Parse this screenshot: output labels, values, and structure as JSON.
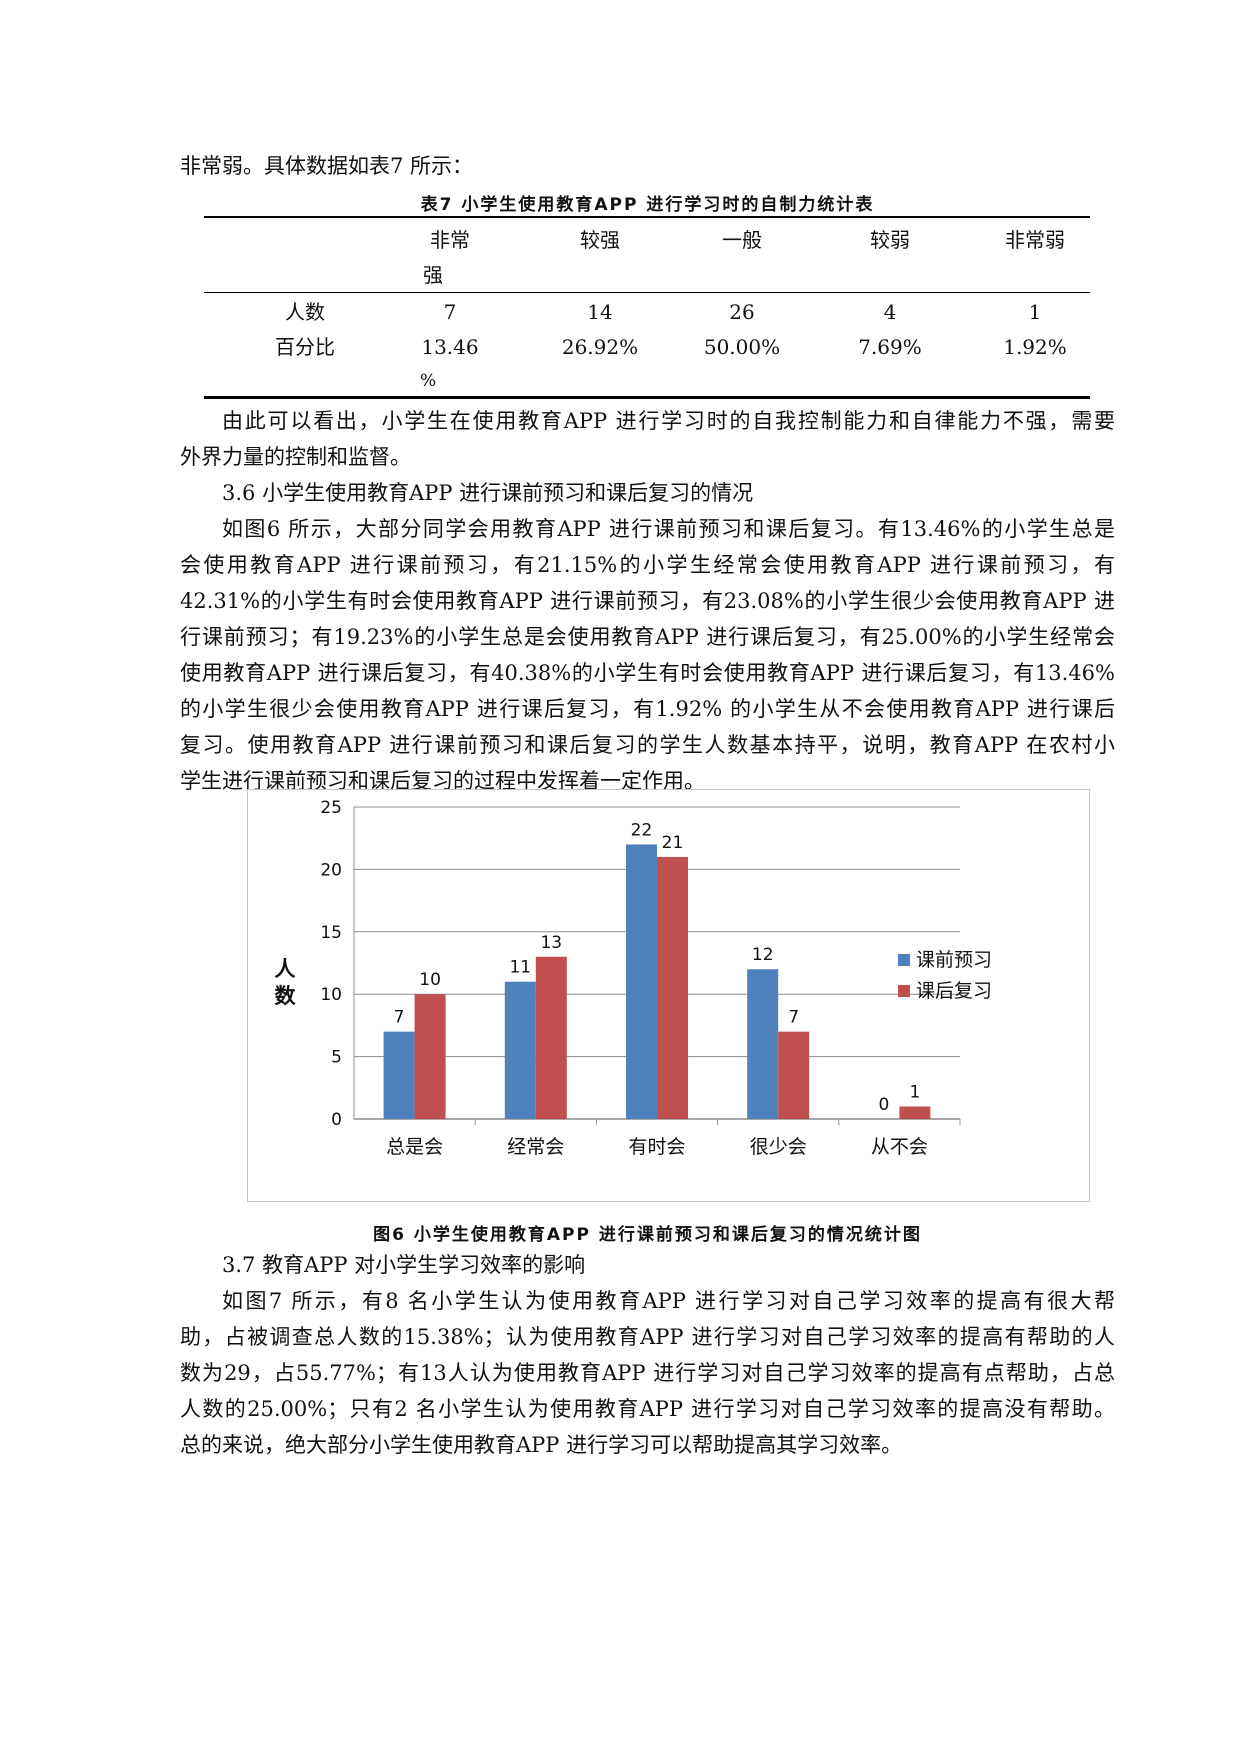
{
  "intro_line": "非常弱。具体数据如表7 所示：",
  "table7": {
    "caption": "表7 小学生使用教育APP 进行学习时的自制力统计表",
    "headers": [
      "非常",
      "较强",
      "一般",
      "较弱",
      "非常弱"
    ],
    "header_wrap": "强",
    "rows": [
      {
        "label": "人数",
        "values": [
          "7",
          "14",
          "26",
          "4",
          "1"
        ]
      },
      {
        "label": "百分比",
        "values": [
          "13.46",
          "26.92%",
          "50.00%",
          "7.69%",
          "1.92%"
        ]
      }
    ],
    "percent_wrap": "%"
  },
  "conclusion_lines": [
    "由此可以看出，小学生在使用教育APP 进行学习时的自我控制能力和自律能力不强，需要",
    "外界力量的控制和监督。"
  ],
  "section_3_6": {
    "heading": "3.6 小学生使用教育APP 进行课前预习和课后复习的情况",
    "lines": [
      "如图6 所示，大部分同学会用教育APP 进行课前预习和课后复习。有13.46%的小学生总是",
      "会使用教育APP 进行课前预习，有21.15%的小学生经常会使用教育APP 进行课前预习，有",
      "42.31%的小学生有时会使用教育APP 进行课前预习，有23.08%的小学生很少会使用教育APP 进",
      "行课前预习；有19.23%的小学生总是会使用教育APP 进行课后复习，有25.00%的小学生经常会",
      "使用教育APP 进行课后复习，有40.38%的小学生有时会使用教育APP 进行课后复习，有13.46%",
      "的小学生很少会使用教育APP 进行课后复习，有1.92%  的小学生从不会使用教育APP 进行课后",
      "复习。使用教育APP 进行课前预习和课后复习的学生人数基本持平，说明，教育APP 在农村小",
      "学生进行课前预习和课后复习的过程中发挥着一定作用。"
    ]
  },
  "chart_data": {
    "type": "bar",
    "categories": [
      "总是会",
      "经常会",
      "有时会",
      "很少会",
      "从不会"
    ],
    "series": [
      {
        "name": "课前预习",
        "values": [
          7,
          11,
          22,
          12,
          0
        ],
        "color": "#4F81BD"
      },
      {
        "name": "课后复习",
        "values": [
          10,
          13,
          21,
          7,
          1
        ],
        "color": "#C0504D"
      }
    ],
    "ylabel": "人数",
    "ylim": [
      0,
      25
    ],
    "yticks": [
      0,
      5,
      10,
      15,
      20,
      25
    ],
    "grid": true,
    "legend": "right",
    "data_labels": true
  },
  "figure6_caption": "图6 小学生使用教育APP 进行课前预习和课后复习的情况统计图",
  "section_3_7": {
    "heading": "3.7 教育APP 对小学生学习效率的影响",
    "lines": [
      "如图7 所示，有8 名小学生认为使用教育APP 进行学习对自己学习效率的提高有很大帮",
      "助，占被调查总人数的15.38%；认为使用教育APP 进行学习对自己学习效率的提高有帮助的人",
      "数为29，占55.77%；有13人认为使用教育APP 进行学习对自己学习效率的提高有点帮助，占总",
      "人数的25.00%；只有2 名小学生认为使用教育APP 进行学习对自己学习效率的提高没有帮助。",
      "总的来说，绝大部分小学生使用教育APP 进行学习可以帮助提高其学习效率。"
    ]
  }
}
